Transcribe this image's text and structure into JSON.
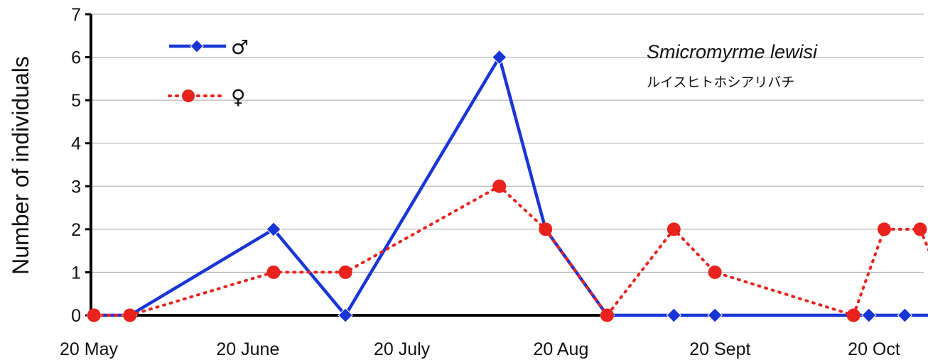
{
  "chart_data": {
    "type": "line",
    "ylabel": "Number of  individuals",
    "xlabel": "",
    "ylim": [
      0,
      7
    ],
    "yticks": [
      0,
      1,
      2,
      3,
      4,
      5,
      6,
      7
    ],
    "grid": "horizontal",
    "x_tick_labels": [
      "20 May",
      "20 June",
      "20 July",
      "20 Aug",
      "20 Sept",
      "20 Oct"
    ],
    "x_tick_dates": [
      "05-20",
      "06-20",
      "07-20",
      "08-20",
      "09-20",
      "10-20"
    ],
    "annotation": {
      "species_name": "Smicromyrme lewisi",
      "japanese_name": "ルイスヒトホシアリバチ"
    },
    "legend_position": "top-left",
    "series": [
      {
        "name": "♂",
        "color": "#1a35d6",
        "style": "solid",
        "marker": "diamond",
        "points": [
          {
            "date": "05-21",
            "value": 0
          },
          {
            "date": "05-28",
            "value": 0
          },
          {
            "date": "06-25",
            "value": 2
          },
          {
            "date": "07-09",
            "value": 0
          },
          {
            "date": "08-08",
            "value": 6
          },
          {
            "date": "08-17",
            "value": 2
          },
          {
            "date": "08-29",
            "value": 0
          },
          {
            "date": "09-11",
            "value": 0
          },
          {
            "date": "09-19",
            "value": 0
          },
          {
            "date": "10-19",
            "value": 0
          },
          {
            "date": "10-26",
            "value": 0
          },
          {
            "date": "11-02",
            "value": 0
          }
        ]
      },
      {
        "name": "♀",
        "color": "#e8221c",
        "style": "dotted",
        "marker": "circle",
        "points": [
          {
            "date": "05-21",
            "value": 0
          },
          {
            "date": "05-28",
            "value": 0
          },
          {
            "date": "06-25",
            "value": 1
          },
          {
            "date": "07-09",
            "value": 1
          },
          {
            "date": "08-08",
            "value": 3
          },
          {
            "date": "08-17",
            "value": 2
          },
          {
            "date": "08-29",
            "value": 0
          },
          {
            "date": "09-11",
            "value": 2
          },
          {
            "date": "09-19",
            "value": 1
          },
          {
            "date": "10-16",
            "value": 0
          },
          {
            "date": "10-22",
            "value": 2
          },
          {
            "date": "10-29",
            "value": 2
          },
          {
            "date": "11-05",
            "value": 0
          }
        ]
      }
    ]
  }
}
